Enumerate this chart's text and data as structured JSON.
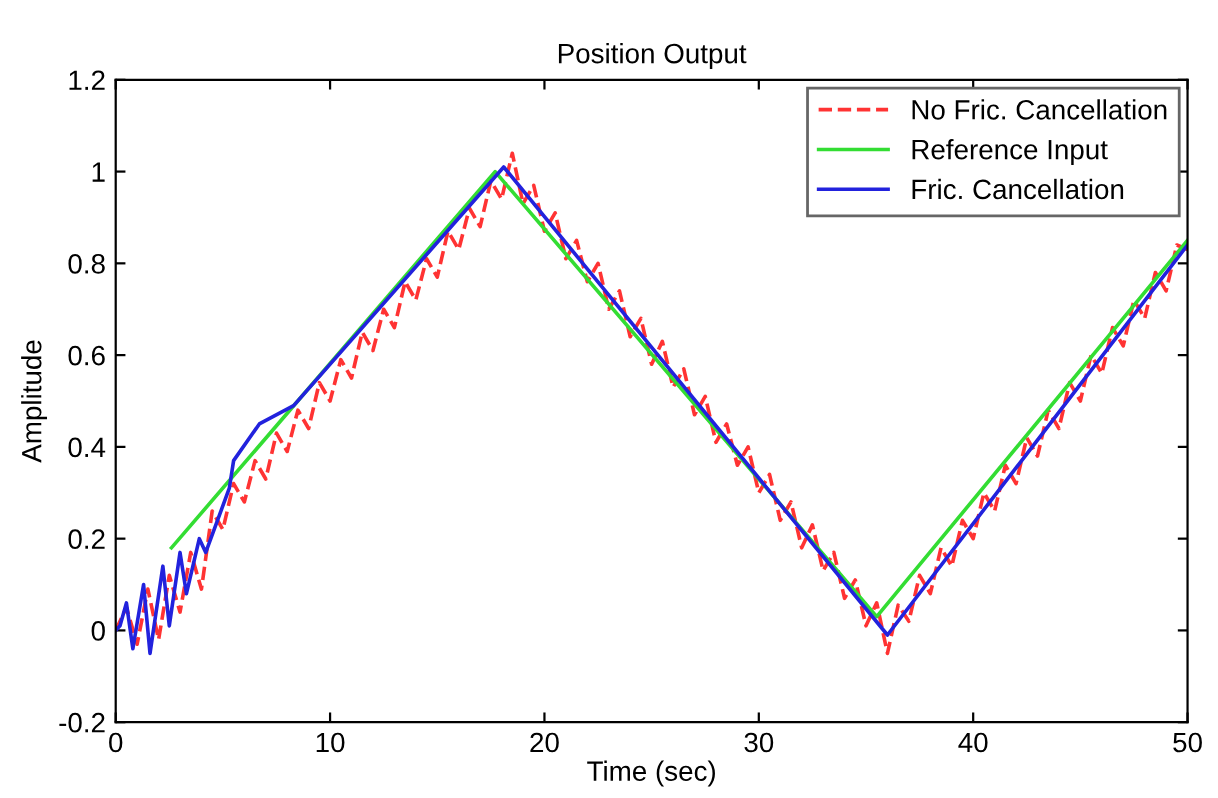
{
  "chart_data": {
    "type": "line",
    "title": "Position Output",
    "xlabel": "Time (sec)",
    "ylabel": "Amplitude",
    "xlim": [
      0,
      50
    ],
    "xticks": [
      0,
      10,
      20,
      30,
      40,
      50
    ],
    "ylim": [
      -0.2,
      1.2
    ],
    "yticks": [
      {
        "value": -0.2,
        "label": "-0.2"
      },
      0,
      0.2,
      0.4,
      0.6,
      0.8,
      1,
      1.2
    ],
    "grid": false,
    "legend": "top right",
    "series": [
      {
        "name": "No Fric. Cancellation",
        "color": "#ff3333",
        "line_style": "dashed",
        "x": [
          0,
          0.5,
          1,
          1.5,
          2,
          2.5,
          3,
          3.5,
          4,
          4.5,
          5,
          5.5,
          6,
          6.5,
          7,
          7.5,
          8,
          8.5,
          9,
          9.5,
          10,
          10.5,
          11,
          11.5,
          12,
          12.5,
          13,
          13.5,
          14,
          14.5,
          15,
          15.5,
          16,
          16.5,
          17,
          17.5,
          18,
          18.5,
          19,
          19.5,
          20,
          20.5,
          21,
          21.5,
          22,
          22.5,
          23,
          23.5,
          24,
          24.5,
          25,
          25.5,
          26,
          26.5,
          27,
          27.5,
          28,
          28.5,
          29,
          29.5,
          30,
          30.5,
          31,
          31.5,
          32,
          32.5,
          33,
          33.5,
          34,
          34.5,
          35,
          35.5,
          36,
          36.5,
          37,
          37.5,
          38,
          38.5,
          39,
          39.5,
          40,
          40.5,
          41,
          41.5,
          42,
          42.5,
          43,
          43.5,
          44,
          44.5,
          45,
          45.5,
          46,
          46.5,
          47,
          47.5,
          48,
          48.5,
          49,
          49.5,
          50
        ],
        "values": [
          0,
          0.05,
          -0.03,
          0.09,
          -0.02,
          0.12,
          0.04,
          0.17,
          0.09,
          0.26,
          0.22,
          0.32,
          0.28,
          0.37,
          0.33,
          0.43,
          0.39,
          0.48,
          0.44,
          0.54,
          0.5,
          0.59,
          0.55,
          0.65,
          0.61,
          0.7,
          0.66,
          0.76,
          0.72,
          0.81,
          0.77,
          0.87,
          0.83,
          0.92,
          0.88,
          0.98,
          0.94,
          1.04,
          0.93,
          0.97,
          0.87,
          0.91,
          0.81,
          0.85,
          0.76,
          0.8,
          0.7,
          0.74,
          0.64,
          0.68,
          0.58,
          0.63,
          0.53,
          0.57,
          0.47,
          0.51,
          0.41,
          0.45,
          0.36,
          0.4,
          0.3,
          0.34,
          0.24,
          0.28,
          0.18,
          0.23,
          0.13,
          0.17,
          0.07,
          0.11,
          0.01,
          0.06,
          -0.05,
          0.055,
          0.02,
          0.12,
          0.08,
          0.18,
          0.14,
          0.24,
          0.2,
          0.3,
          0.26,
          0.36,
          0.32,
          0.42,
          0.38,
          0.48,
          0.44,
          0.54,
          0.5,
          0.6,
          0.56,
          0.66,
          0.62,
          0.72,
          0.68,
          0.78,
          0.74,
          0.84,
          0.83
        ]
      },
      {
        "name": "Reference Input",
        "color": "#33dd33",
        "line_style": "solid",
        "x": [
          2.6,
          17.7,
          35.5,
          50
        ],
        "values": [
          0.18,
          1.0,
          0.03,
          0.85
        ]
      },
      {
        "name": "Fric. Cancellation",
        "color": "#2222dd",
        "line_style": "solid",
        "x": [
          0,
          0.2,
          0.5,
          0.8,
          1.3,
          1.6,
          2.2,
          2.5,
          3.0,
          3.3,
          3.9,
          4.2,
          5.3,
          5.5,
          6.7,
          8.3,
          18.1,
          36.0,
          50
        ],
        "values": [
          0,
          0.01,
          0.06,
          -0.04,
          0.1,
          -0.05,
          0.14,
          0.01,
          0.17,
          0.08,
          0.2,
          0.17,
          0.31,
          0.37,
          0.45,
          0.49,
          1.01,
          -0.01,
          0.84
        ]
      }
    ]
  }
}
